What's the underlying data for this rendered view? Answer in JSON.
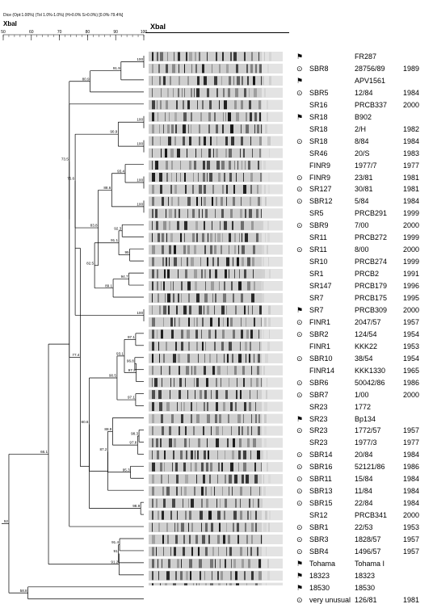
{
  "header": {
    "info": "Dice (Opt:1.00%) (Tol 1.0%-1.0%) (H>0.0% S>0.0%) [0.0%-79.4%]",
    "enzyme_left": "XbaI",
    "enzyme_right": "XbaI",
    "scale_ticks": [
      "50",
      "60",
      "70",
      "80",
      "90",
      "100"
    ]
  },
  "symbols": {
    "target": "⊙",
    "flag": "⚑"
  },
  "rows": [
    {
      "symbol": "flag",
      "serotype": "",
      "strain": "FR287",
      "year": ""
    },
    {
      "symbol": "target",
      "serotype": "SBR8",
      "strain": "28756/89",
      "year": "1989"
    },
    {
      "symbol": "flag",
      "serotype": "",
      "strain": "APV1561",
      "year": ""
    },
    {
      "symbol": "target",
      "serotype": "SBR5",
      "strain": "12/84",
      "year": "1984"
    },
    {
      "symbol": "",
      "serotype": "SR16",
      "strain": "PRCB337",
      "year": "2000"
    },
    {
      "symbol": "flag",
      "serotype": "SR18",
      "strain": "B902",
      "year": ""
    },
    {
      "symbol": "",
      "serotype": "SR18",
      "strain": "2/H",
      "year": "1982"
    },
    {
      "symbol": "target",
      "serotype": "SR18",
      "strain": "8/84",
      "year": "1984"
    },
    {
      "symbol": "",
      "serotype": "SR46",
      "strain": "20/S",
      "year": "1983"
    },
    {
      "symbol": "",
      "serotype": "FINR9",
      "strain": "1977/7",
      "year": "1977"
    },
    {
      "symbol": "target",
      "serotype": "FINR9",
      "strain": "23/81",
      "year": "1981"
    },
    {
      "symbol": "target",
      "serotype": "SR127",
      "strain": "30/81",
      "year": "1981"
    },
    {
      "symbol": "target",
      "serotype": "SBR12",
      "strain": "5/84",
      "year": "1984"
    },
    {
      "symbol": "",
      "serotype": "SR5",
      "strain": "PRCB291",
      "year": "1999"
    },
    {
      "symbol": "target",
      "serotype": "SBR9",
      "strain": "7/00",
      "year": "2000"
    },
    {
      "symbol": "",
      "serotype": "SR11",
      "strain": "PRCB272",
      "year": "1999"
    },
    {
      "symbol": "target",
      "serotype": "SR11",
      "strain": "8/00",
      "year": "2000"
    },
    {
      "symbol": "",
      "serotype": "SR10",
      "strain": "PRCB274",
      "year": "1999"
    },
    {
      "symbol": "",
      "serotype": "SR1",
      "strain": "PRCB2",
      "year": "1991"
    },
    {
      "symbol": "",
      "serotype": "SR147",
      "strain": "PRCB179",
      "year": "1996"
    },
    {
      "symbol": "",
      "serotype": "SR7",
      "strain": "PRCB175",
      "year": "1995"
    },
    {
      "symbol": "flag",
      "serotype": "SR7",
      "strain": "PRCB309",
      "year": "2000"
    },
    {
      "symbol": "target",
      "serotype": "FINR1",
      "strain": "2047/57",
      "year": "1957"
    },
    {
      "symbol": "target",
      "serotype": "SBR2",
      "strain": "124/54",
      "year": "1954"
    },
    {
      "symbol": "",
      "serotype": "FINR1",
      "strain": "KKK22",
      "year": "1953"
    },
    {
      "symbol": "target",
      "serotype": "SBR10",
      "strain": "38/54",
      "year": "1954"
    },
    {
      "symbol": "",
      "serotype": "FINR14",
      "strain": "KKK1330",
      "year": "1965"
    },
    {
      "symbol": "target",
      "serotype": "SBR6",
      "strain": "50042/86",
      "year": "1986"
    },
    {
      "symbol": "target",
      "serotype": "SBR7",
      "strain": "1/00",
      "year": "2000"
    },
    {
      "symbol": "",
      "serotype": "SR23",
      "strain": "1772",
      "year": ""
    },
    {
      "symbol": "flag",
      "serotype": "SR23",
      "strain": "Bp134",
      "year": ""
    },
    {
      "symbol": "target",
      "serotype": "SR23",
      "strain": "1772/57",
      "year": "1957"
    },
    {
      "symbol": "",
      "serotype": "SR23",
      "strain": "1977/3",
      "year": "1977"
    },
    {
      "symbol": "target",
      "serotype": "SBR14",
      "strain": "20/84",
      "year": "1984"
    },
    {
      "symbol": "target",
      "serotype": "SBR16",
      "strain": "52121/86",
      "year": "1986"
    },
    {
      "symbol": "target",
      "serotype": "SBR11",
      "strain": "15/84",
      "year": "1984"
    },
    {
      "symbol": "target",
      "serotype": "SBR13",
      "strain": "11/84",
      "year": "1984"
    },
    {
      "symbol": "target",
      "serotype": "SBR15",
      "strain": "22/84",
      "year": "1984"
    },
    {
      "symbol": "",
      "serotype": "SR12",
      "strain": "PRCB341",
      "year": "2000"
    },
    {
      "symbol": "target",
      "serotype": "SBR1",
      "strain": "22/53",
      "year": "1953"
    },
    {
      "symbol": "target",
      "serotype": "SBR3",
      "strain": "1828/57",
      "year": "1957"
    },
    {
      "symbol": "target",
      "serotype": "SBR4",
      "strain": "1496/57",
      "year": "1957"
    },
    {
      "symbol": "flag",
      "serotype": "Tohama",
      "strain": "Tohama I",
      "year": ""
    },
    {
      "symbol": "flag",
      "serotype": "18323",
      "strain": "18323",
      "year": ""
    },
    {
      "symbol": "flag",
      "serotype": "18530",
      "strain": "18530",
      "year": ""
    },
    {
      "symbol": "target",
      "serotype": "very unusual",
      "strain": "126/81",
      "year": "1981"
    }
  ],
  "dendrogram": {
    "nodes": [
      {
        "id": "n100a",
        "sim": 100,
        "children": [
          0,
          1
        ],
        "label": "100"
      },
      {
        "id": "n91",
        "sim": 91.9,
        "children": [
          "n100a",
          2
        ],
        "label": "91.9"
      },
      {
        "id": "n80",
        "sim": 80.9,
        "children": [
          "n91",
          3
        ],
        "label": "80.9"
      },
      {
        "id": "n100b",
        "sim": 100,
        "children": [
          5,
          6
        ],
        "label": "100"
      },
      {
        "id": "n100c",
        "sim": 100,
        "children": [
          7,
          8
        ],
        "label": "100"
      },
      {
        "id": "n90",
        "sim": 90.9,
        "children": [
          "n100b",
          "n100c"
        ],
        "label": "90.9"
      },
      {
        "id": "n100d",
        "sim": 100,
        "children": [
          10,
          11
        ],
        "label": "100"
      },
      {
        "id": "n93",
        "sim": 93.4,
        "children": [
          9,
          "n100d"
        ],
        "label": "93.4"
      },
      {
        "id": "n100e",
        "sim": 100,
        "children": [
          12,
          13
        ],
        "label": "100"
      },
      {
        "id": "n88",
        "sim": 88.6,
        "children": [
          "n93",
          "n100e"
        ],
        "label": "88.6"
      },
      {
        "id": "n92",
        "sim": 92.3,
        "children": [
          14,
          15
        ],
        "label": "92.3"
      },
      {
        "id": "n95",
        "sim": 95,
        "children": [
          16,
          17
        ],
        "label": "95"
      },
      {
        "id": "n91b",
        "sim": 91.1,
        "children": [
          "n92",
          "n95"
        ],
        "label": "91.1"
      },
      {
        "id": "n94",
        "sim": 94.7,
        "children": [
          18,
          19
        ],
        "label": "94.7"
      },
      {
        "id": "n89",
        "sim": 89.1,
        "children": [
          "n94",
          20
        ],
        "label": "89.1"
      },
      {
        "id": "n82",
        "sim": 82.5,
        "children": [
          "n91b",
          "n89"
        ],
        "label": "82.5"
      },
      {
        "id": "n83",
        "sim": 83.8,
        "children": [
          "n88",
          "n82"
        ],
        "label": "83.8"
      },
      {
        "id": "n100f",
        "sim": 100,
        "children": [
          21,
          22
        ],
        "label": "100"
      },
      {
        "id": "n75",
        "sim": 75.6,
        "children": [
          "n90",
          "n83"
        ],
        "label": "75.6"
      },
      {
        "id": "n75b",
        "sim": 75.6,
        "children": [
          "n75",
          "n100f"
        ],
        "label": ""
      },
      {
        "id": "n97a",
        "sim": 97.1,
        "children": [
          23,
          24
        ],
        "label": "97.1"
      },
      {
        "id": "n96",
        "sim": 96.8,
        "children": [
          25,
          26
        ],
        "label": "96.8"
      },
      {
        "id": "n97b",
        "sim": 97.3,
        "children": [
          "n96",
          27
        ],
        "label": "97.3"
      },
      {
        "id": "n93b",
        "sim": 93.1,
        "children": [
          "n97a",
          "n97b"
        ],
        "label": "93.1"
      },
      {
        "id": "n97c",
        "sim": 97.1,
        "children": [
          28,
          29
        ],
        "label": "97.1"
      },
      {
        "id": "n90b",
        "sim": 90.5,
        "children": [
          "n93b",
          "n97c"
        ],
        "label": "90.5"
      },
      {
        "id": "n98a",
        "sim": 98.3,
        "children": [
          31,
          32
        ],
        "label": "98.3"
      },
      {
        "id": "n97d",
        "sim": 97.8,
        "children": [
          "n98a",
          33
        ],
        "label": "97.8"
      },
      {
        "id": "n95b",
        "sim": 95.3,
        "children": [
          34,
          35
        ],
        "label": "95.3"
      },
      {
        "id": "n88b",
        "sim": 88.9,
        "children": [
          30,
          "n97d"
        ],
        "label": "88.9"
      },
      {
        "id": "n87",
        "sim": 87.2,
        "children": [
          "n88b",
          "n95b"
        ],
        "label": "87.2"
      },
      {
        "id": "n87b",
        "sim": 87.2,
        "children": [
          "n87",
          36
        ],
        "label": ""
      },
      {
        "id": "n80b",
        "sim": 80.6,
        "children": [
          "n90b",
          "n87b"
        ],
        "label": "80.6"
      },
      {
        "id": "n98b",
        "sim": 98.9,
        "children": [
          37,
          38
        ],
        "label": "98.9"
      },
      {
        "id": "n80c",
        "sim": 80.6,
        "children": [
          "n80b",
          "n98b"
        ],
        "label": ""
      },
      {
        "id": "n77",
        "sim": 77.4,
        "children": [
          "n75b",
          "n80c"
        ],
        "label": "77.4"
      },
      {
        "id": "n73",
        "sim": 73.5,
        "children": [
          "n80",
          "n77"
        ],
        "label": ""
      },
      {
        "id": "n73b",
        "sim": 73.5,
        "children": [
          "n73",
          4
        ],
        "label": "73.5"
      },
      {
        "id": "n73c",
        "sim": 73.5,
        "children": [
          "n73b",
          39
        ],
        "label": ""
      },
      {
        "id": "n91c",
        "sim": 91.4,
        "children": [
          40,
          41
        ],
        "label": "91.4"
      },
      {
        "id": "n91d",
        "sim": 91,
        "children": [
          "n91c",
          42
        ],
        "label": "91"
      },
      {
        "id": "n91e",
        "sim": 91.2,
        "children": [
          "n91d",
          43
        ],
        "label": "91.2"
      },
      {
        "id": "n66",
        "sim": 66.1,
        "children": [
          "n73c",
          "n91e"
        ],
        "label": "66.1"
      },
      {
        "id": "n58",
        "sim": 58.8,
        "children": [
          44,
          45
        ],
        "label": "58.8"
      },
      {
        "id": "n52",
        "sim": 52,
        "children": [
          "n66",
          "n58"
        ],
        "label": "52"
      }
    ]
  }
}
